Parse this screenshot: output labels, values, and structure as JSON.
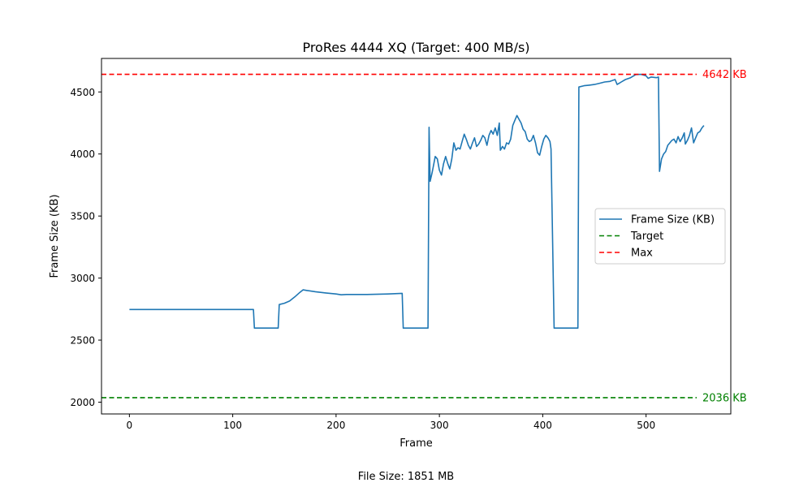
{
  "chart_data": {
    "type": "line",
    "title": "ProRes 4444 XQ (Target: 400 MB/s)",
    "xlabel": "Frame",
    "ylabel": "Frame Size (KB)",
    "xlim": [
      -27,
      582
    ],
    "ylim": [
      1905,
      4770
    ],
    "xticks": [
      0,
      100,
      200,
      300,
      400,
      500
    ],
    "yticks": [
      2000,
      2500,
      3000,
      3500,
      4000,
      4500
    ],
    "grid": false,
    "legend_position": "center-right",
    "series": [
      {
        "name": "Frame Size (KB)",
        "color": "#1f77b4",
        "points": [
          [
            0,
            2747
          ],
          [
            60,
            2747
          ],
          [
            120,
            2747
          ],
          [
            121,
            2597
          ],
          [
            144,
            2597
          ],
          [
            145,
            2787
          ],
          [
            150,
            2797
          ],
          [
            155,
            2815
          ],
          [
            160,
            2848
          ],
          [
            165,
            2885
          ],
          [
            168,
            2905
          ],
          [
            172,
            2900
          ],
          [
            180,
            2890
          ],
          [
            190,
            2880
          ],
          [
            200,
            2872
          ],
          [
            205,
            2865
          ],
          [
            210,
            2868
          ],
          [
            230,
            2868
          ],
          [
            250,
            2872
          ],
          [
            264,
            2877
          ],
          [
            265,
            2597
          ],
          [
            289,
            2597
          ],
          [
            290,
            4215
          ],
          [
            291,
            3780
          ],
          [
            293,
            3850
          ],
          [
            296,
            3980
          ],
          [
            298,
            3960
          ],
          [
            300,
            3870
          ],
          [
            302,
            3830
          ],
          [
            304,
            3920
          ],
          [
            306,
            3980
          ],
          [
            308,
            3925
          ],
          [
            310,
            3880
          ],
          [
            312,
            3960
          ],
          [
            314,
            4090
          ],
          [
            316,
            4030
          ],
          [
            318,
            4050
          ],
          [
            320,
            4040
          ],
          [
            322,
            4100
          ],
          [
            324,
            4160
          ],
          [
            326,
            4120
          ],
          [
            328,
            4070
          ],
          [
            330,
            4040
          ],
          [
            332,
            4090
          ],
          [
            334,
            4130
          ],
          [
            336,
            4060
          ],
          [
            338,
            4080
          ],
          [
            340,
            4110
          ],
          [
            342,
            4150
          ],
          [
            344,
            4130
          ],
          [
            346,
            4070
          ],
          [
            348,
            4150
          ],
          [
            350,
            4190
          ],
          [
            352,
            4160
          ],
          [
            354,
            4210
          ],
          [
            356,
            4150
          ],
          [
            358,
            4250
          ],
          [
            359,
            4030
          ],
          [
            361,
            4060
          ],
          [
            363,
            4040
          ],
          [
            365,
            4090
          ],
          [
            367,
            4080
          ],
          [
            369,
            4120
          ],
          [
            371,
            4230
          ],
          [
            373,
            4270
          ],
          [
            375,
            4310
          ],
          [
            377,
            4280
          ],
          [
            379,
            4250
          ],
          [
            381,
            4200
          ],
          [
            383,
            4180
          ],
          [
            385,
            4120
          ],
          [
            387,
            4100
          ],
          [
            389,
            4110
          ],
          [
            391,
            4150
          ],
          [
            393,
            4090
          ],
          [
            395,
            4010
          ],
          [
            397,
            3990
          ],
          [
            399,
            4060
          ],
          [
            401,
            4120
          ],
          [
            403,
            4150
          ],
          [
            405,
            4130
          ],
          [
            407,
            4100
          ],
          [
            408,
            4040
          ],
          [
            411,
            2597
          ],
          [
            434,
            2597
          ],
          [
            435,
            4540
          ],
          [
            440,
            4550
          ],
          [
            445,
            4555
          ],
          [
            450,
            4560
          ],
          [
            455,
            4570
          ],
          [
            460,
            4580
          ],
          [
            465,
            4585
          ],
          [
            470,
            4600
          ],
          [
            472,
            4560
          ],
          [
            476,
            4580
          ],
          [
            480,
            4600
          ],
          [
            485,
            4615
          ],
          [
            490,
            4640
          ],
          [
            495,
            4642
          ],
          [
            500,
            4630
          ],
          [
            502,
            4610
          ],
          [
            505,
            4620
          ],
          [
            510,
            4615
          ],
          [
            512,
            4620
          ],
          [
            513,
            3860
          ],
          [
            515,
            3960
          ],
          [
            517,
            4000
          ],
          [
            519,
            4020
          ],
          [
            521,
            4070
          ],
          [
            523,
            4090
          ],
          [
            525,
            4110
          ],
          [
            527,
            4120
          ],
          [
            529,
            4090
          ],
          [
            531,
            4140
          ],
          [
            533,
            4100
          ],
          [
            535,
            4130
          ],
          [
            537,
            4170
          ],
          [
            538,
            4080
          ],
          [
            540,
            4110
          ],
          [
            542,
            4150
          ],
          [
            544,
            4210
          ],
          [
            546,
            4090
          ],
          [
            548,
            4130
          ],
          [
            550,
            4170
          ],
          [
            552,
            4180
          ],
          [
            554,
            4210
          ],
          [
            556,
            4230
          ]
        ]
      },
      {
        "name": "Target",
        "color": "#008000",
        "value": 2036,
        "dashed": true
      },
      {
        "name": "Max",
        "color": "#ff0000",
        "value": 4642,
        "dashed": true
      }
    ],
    "annotations": [
      {
        "text": "4642 KB",
        "color": "#ff0000",
        "value": 4642
      },
      {
        "text": "2036 KB",
        "color": "#008000",
        "value": 2036
      }
    ]
  },
  "footer": {
    "file_size": "File Size: 1851 MB"
  }
}
